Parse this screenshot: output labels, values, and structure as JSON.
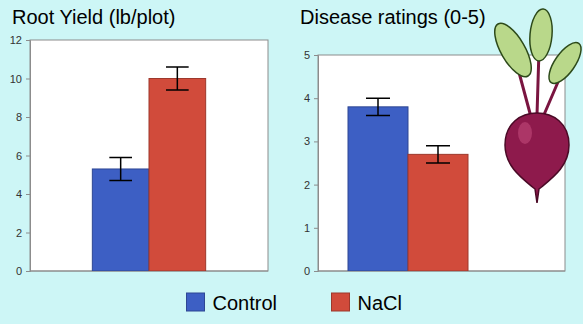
{
  "chart_data": [
    {
      "type": "bar",
      "title": "Root Yield (lb/plot)",
      "categories": [
        null
      ],
      "series": [
        {
          "name": "Control",
          "color": "#3d5fc4",
          "values": [
            5.3
          ],
          "errors": [
            0.6
          ]
        },
        {
          "name": "NaCl",
          "color": "#d14b3b",
          "values": [
            10.0
          ],
          "errors": [
            0.6
          ]
        }
      ],
      "ylim": [
        0,
        12
      ],
      "yticks": [
        0,
        2,
        4,
        6,
        8,
        10,
        12
      ],
      "legend": "bottom"
    },
    {
      "type": "bar",
      "title": "Disease ratings (0-5)",
      "categories": [
        null
      ],
      "series": [
        {
          "name": "Control",
          "color": "#3d5fc4",
          "values": [
            3.8
          ],
          "errors": [
            0.2
          ]
        },
        {
          "name": "NaCl",
          "color": "#d14b3b",
          "values": [
            2.7
          ],
          "errors": [
            0.2
          ]
        }
      ],
      "ylim": [
        0,
        5
      ],
      "yticks": [
        0,
        1,
        2,
        3,
        4,
        5
      ]
    }
  ]
}
